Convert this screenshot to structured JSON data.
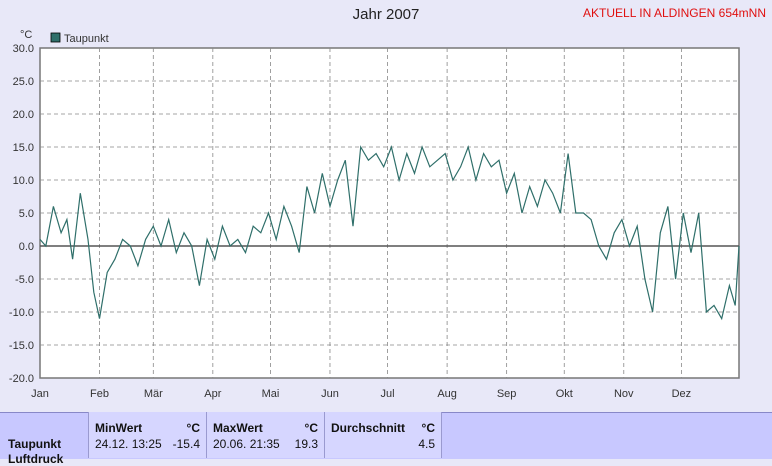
{
  "header": {
    "title": "Jahr 2007",
    "station": "AKTUELL IN ALDINGEN 654mNN"
  },
  "chart_data": {
    "type": "line",
    "unit": "°C",
    "title": "Jahr 2007",
    "legend": [
      "Taupunkt"
    ],
    "ylim": [
      -20,
      30
    ],
    "yticks": [
      "30.0",
      "25.0",
      "20.0",
      "15.0",
      "10.0",
      "5.0",
      "0.0",
      "-5.0",
      "-10.0",
      "-15.0",
      "-20.0"
    ],
    "months": [
      "Jan",
      "Feb",
      "Mär",
      "Apr",
      "Mai",
      "Jun",
      "Jul",
      "Aug",
      "Sep",
      "Okt",
      "Nov",
      "Dez"
    ],
    "color": "#2f6f6a",
    "series": [
      {
        "name": "Taupunkt",
        "x": [
          1,
          4,
          8,
          12,
          15,
          18,
          22,
          26,
          29,
          32,
          36,
          40,
          44,
          48,
          52,
          56,
          60,
          64,
          68,
          72,
          76,
          80,
          84,
          88,
          92,
          96,
          100,
          104,
          108,
          112,
          116,
          120,
          124,
          128,
          132,
          136,
          140,
          144,
          148,
          152,
          156,
          160,
          164,
          168,
          172,
          176,
          180,
          184,
          188,
          192,
          196,
          200,
          204,
          208,
          212,
          216,
          220,
          224,
          228,
          232,
          236,
          240,
          244,
          248,
          252,
          256,
          260,
          264,
          268,
          272,
          276,
          280,
          284,
          288,
          292,
          296,
          300,
          304,
          308,
          312,
          316,
          320,
          324,
          328,
          332,
          336,
          340,
          344,
          348,
          352,
          356,
          360,
          363,
          365
        ],
        "y": [
          1,
          0,
          6,
          2,
          4,
          -2,
          8,
          1,
          -7,
          -11,
          -4,
          -2,
          1,
          0,
          -3,
          1,
          3,
          0,
          4,
          -1,
          2,
          0,
          -6,
          1,
          -2,
          3,
          0,
          1,
          -1,
          3,
          2,
          5,
          1,
          6,
          3,
          -1,
          9,
          5,
          11,
          6,
          10,
          13,
          3,
          15,
          13,
          14,
          12,
          15,
          10,
          14,
          11,
          15,
          12,
          13,
          14,
          10,
          12,
          15,
          10,
          14,
          12,
          13,
          8,
          11,
          5,
          9,
          6,
          10,
          8,
          5,
          14,
          5,
          5,
          4,
          0,
          -2,
          2,
          4,
          0,
          3,
          -5,
          -10,
          2,
          6,
          -5,
          5,
          -1,
          5,
          -10,
          -9,
          -11,
          -6,
          -9,
          0
        ]
      }
    ]
  },
  "stats": {
    "row_label": "Taupunkt",
    "next_row": "Luftdruck",
    "min": {
      "label": "MinWert",
      "unit": "°C",
      "time": "24.12.  13:25",
      "value": "-15.4"
    },
    "max": {
      "label": "MaxWert",
      "unit": "°C",
      "time": "20.06.  21:35",
      "value": "19.3"
    },
    "avg": {
      "label": "Durchschnitt",
      "unit": "°C",
      "value": "4.5"
    }
  }
}
